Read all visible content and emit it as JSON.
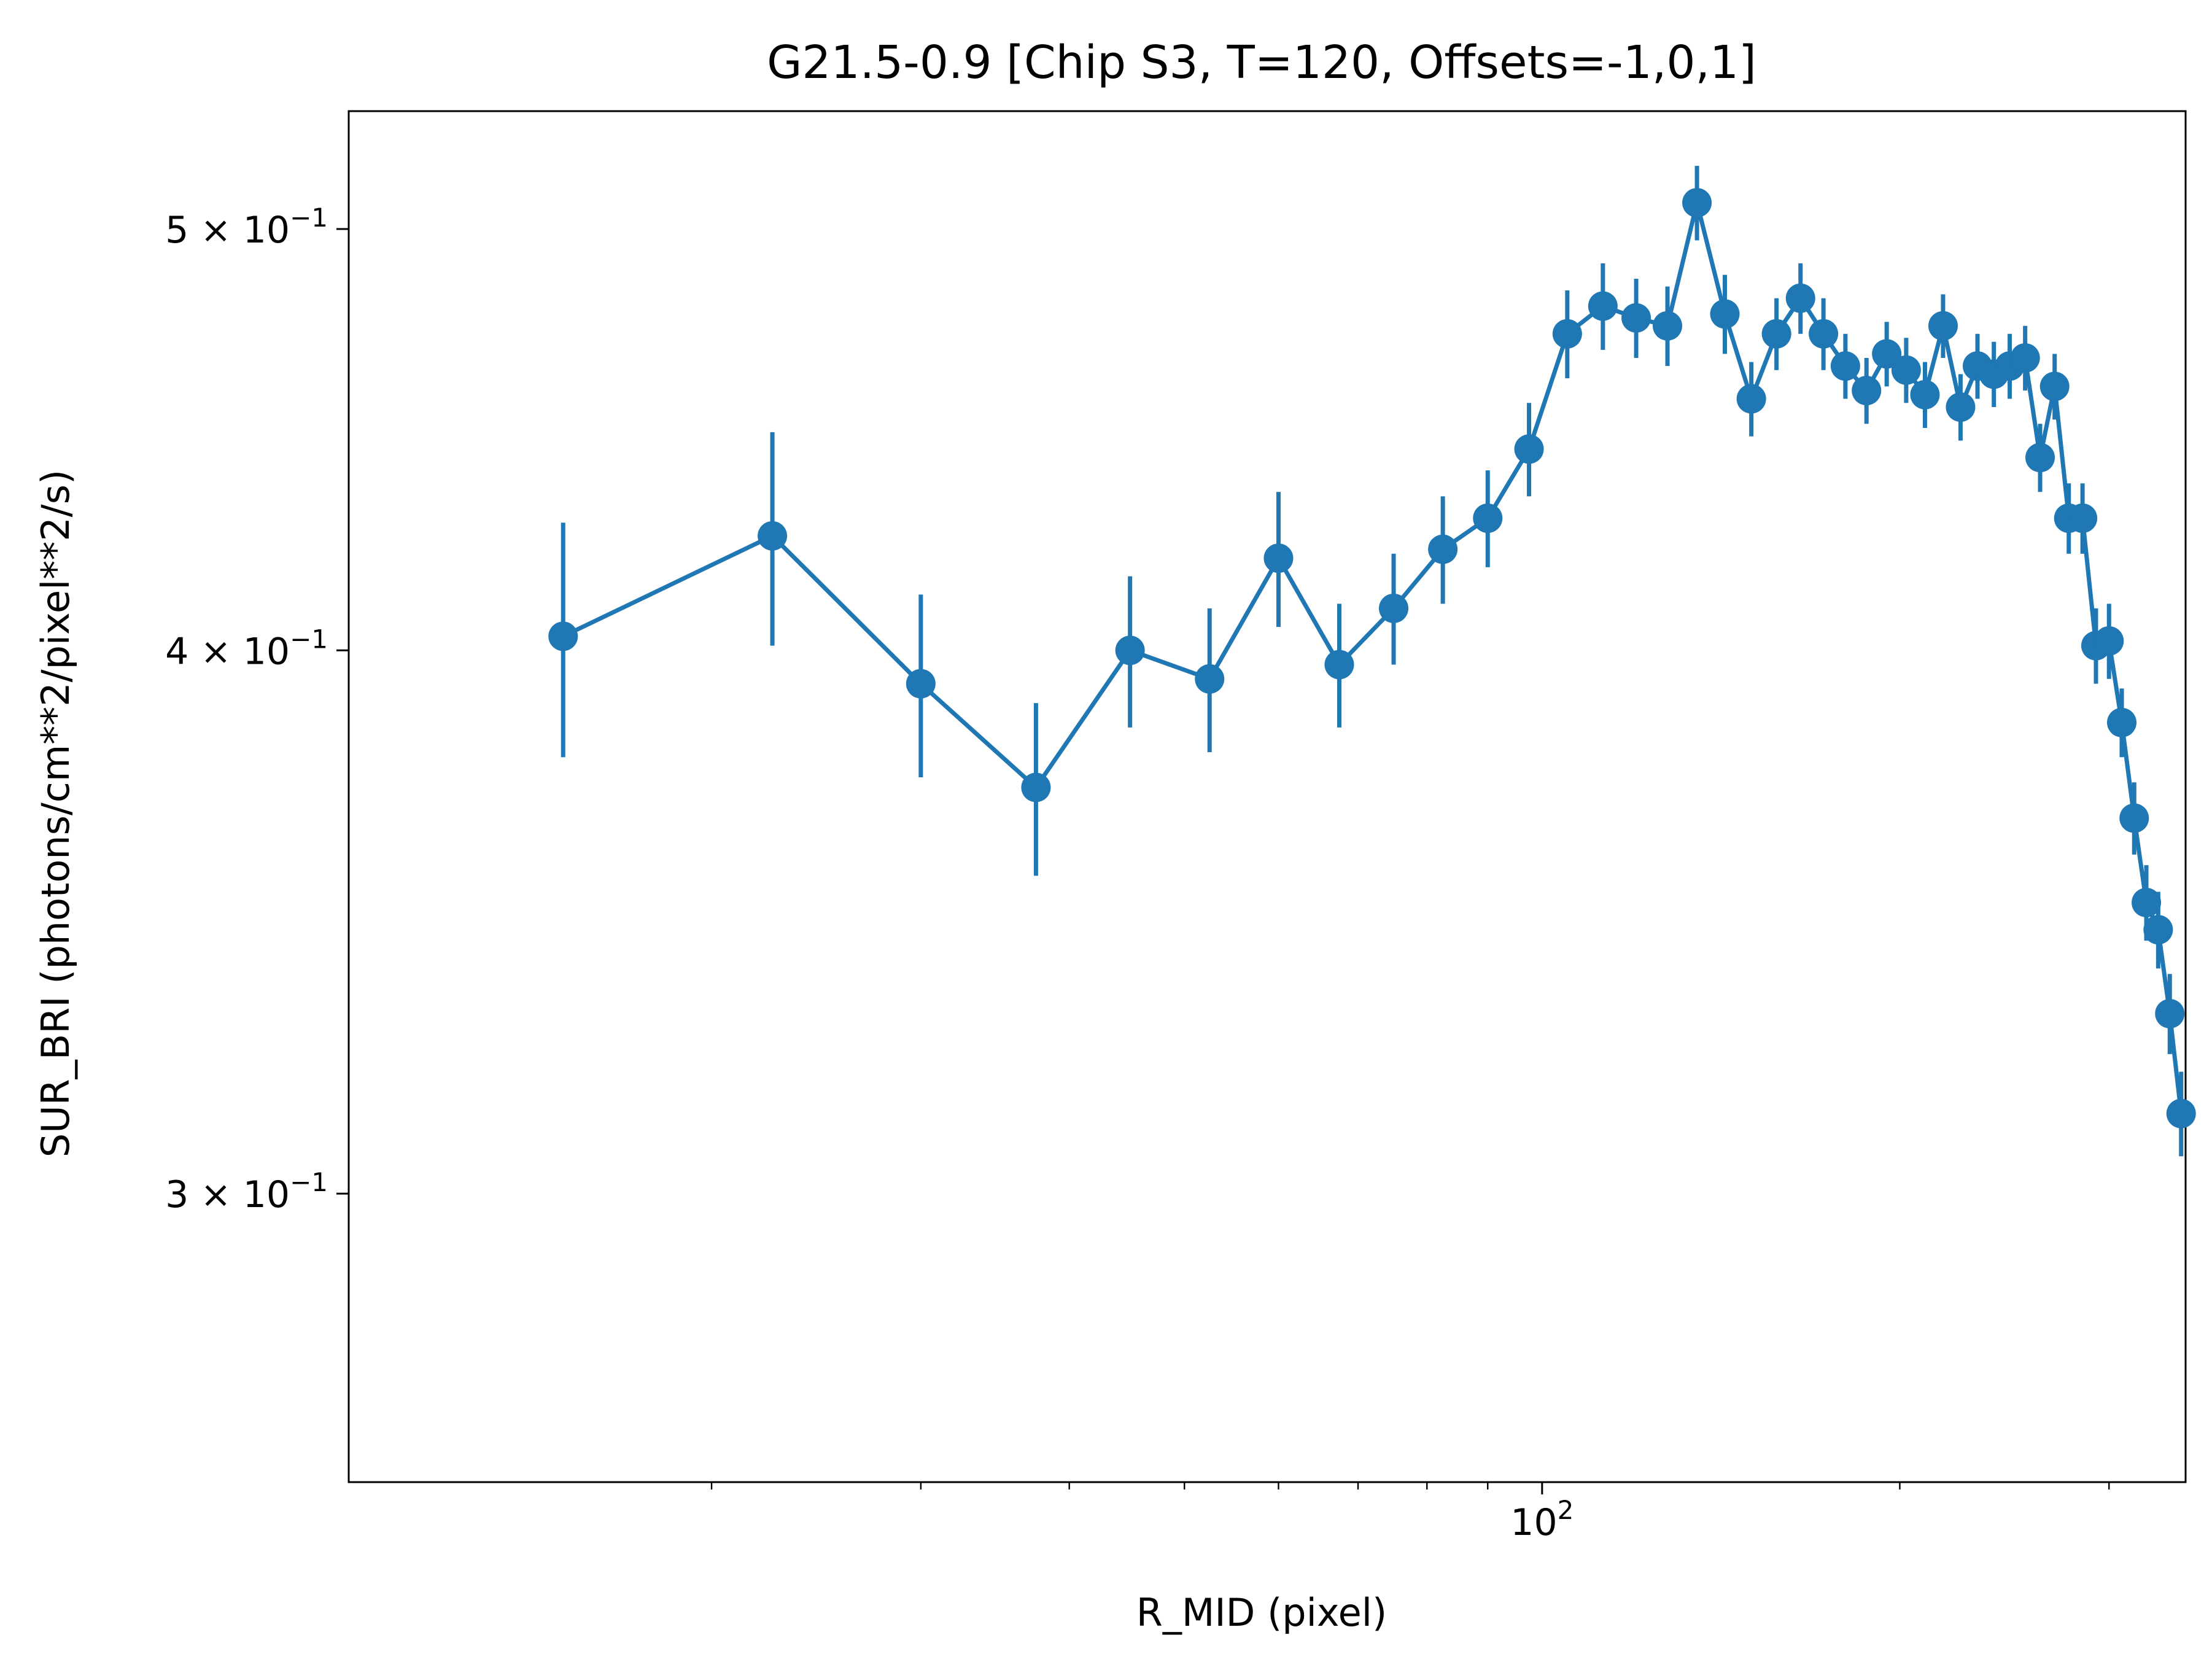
{
  "chart_data": {
    "type": "line",
    "title": "G21.5-0.9 [Chip S3, T=120, Offsets=-1,0,1]",
    "xlabel": "R_MID (pixel)",
    "ylabel": "SUR_BRI (photons/cm**2/pixel**2/s)",
    "x_scale": "log",
    "y_scale": "log",
    "xlim": [
      9.9,
      348
    ],
    "ylim": [
      0.2575,
      0.5322
    ],
    "x_ticks": [
      {
        "value": 100,
        "base": "10",
        "exp": "2"
      }
    ],
    "x_minor_ticks": [
      20,
      30,
      40,
      50,
      60,
      70,
      80,
      90,
      200,
      300
    ],
    "y_ticks": [
      {
        "value": 0.5,
        "mantissa": "5",
        "base": "10",
        "exp": "−1"
      },
      {
        "value": 0.4,
        "mantissa": "4",
        "base": "10",
        "exp": "−1"
      },
      {
        "value": 0.3,
        "mantissa": "3",
        "base": "10",
        "exp": "−1"
      }
    ],
    "grid": false,
    "color": "#1f77b4",
    "series": [
      {
        "marker": "circle",
        "x": [
          15.0,
          22.5,
          30.0,
          37.5,
          45.0,
          52.5,
          60.0,
          67.5,
          75.0,
          82.5,
          90.0,
          97.5,
          105.0,
          112.5,
          120.0,
          127.5,
          135.0,
          142.5,
          150.0,
          157.5,
          165.0,
          172.5,
          180.0,
          187.5,
          195.0,
          202.5,
          210.0,
          217.5,
          225.0,
          232.5,
          240.0,
          247.5,
          255.0,
          262.5,
          270.0,
          277.5,
          285.0,
          292.5,
          300.0,
          307.5,
          315.0,
          322.5,
          330.0,
          337.5,
          345.0
        ],
        "y": [
          0.403,
          0.425,
          0.393,
          0.372,
          0.4,
          0.394,
          0.42,
          0.397,
          0.409,
          0.422,
          0.429,
          0.445,
          0.473,
          0.48,
          0.477,
          0.475,
          0.507,
          0.478,
          0.457,
          0.473,
          0.482,
          0.473,
          0.465,
          0.459,
          0.468,
          0.464,
          0.458,
          0.475,
          0.455,
          0.465,
          0.463,
          0.465,
          0.467,
          0.443,
          0.46,
          0.429,
          0.429,
          0.401,
          0.402,
          0.385,
          0.366,
          0.35,
          0.345,
          0.33,
          0.313
        ],
        "yerr": [
          0.025,
          0.024,
          0.019,
          0.017,
          0.016,
          0.015,
          0.015,
          0.013,
          0.012,
          0.012,
          0.011,
          0.011,
          0.011,
          0.011,
          0.01,
          0.01,
          0.01,
          0.01,
          0.009,
          0.009,
          0.009,
          0.009,
          0.008,
          0.008,
          0.008,
          0.008,
          0.008,
          0.008,
          0.008,
          0.008,
          0.008,
          0.008,
          0.008,
          0.008,
          0.008,
          0.008,
          0.008,
          0.008,
          0.008,
          0.007,
          0.007,
          0.007,
          0.007,
          0.007,
          0.007
        ]
      }
    ]
  }
}
